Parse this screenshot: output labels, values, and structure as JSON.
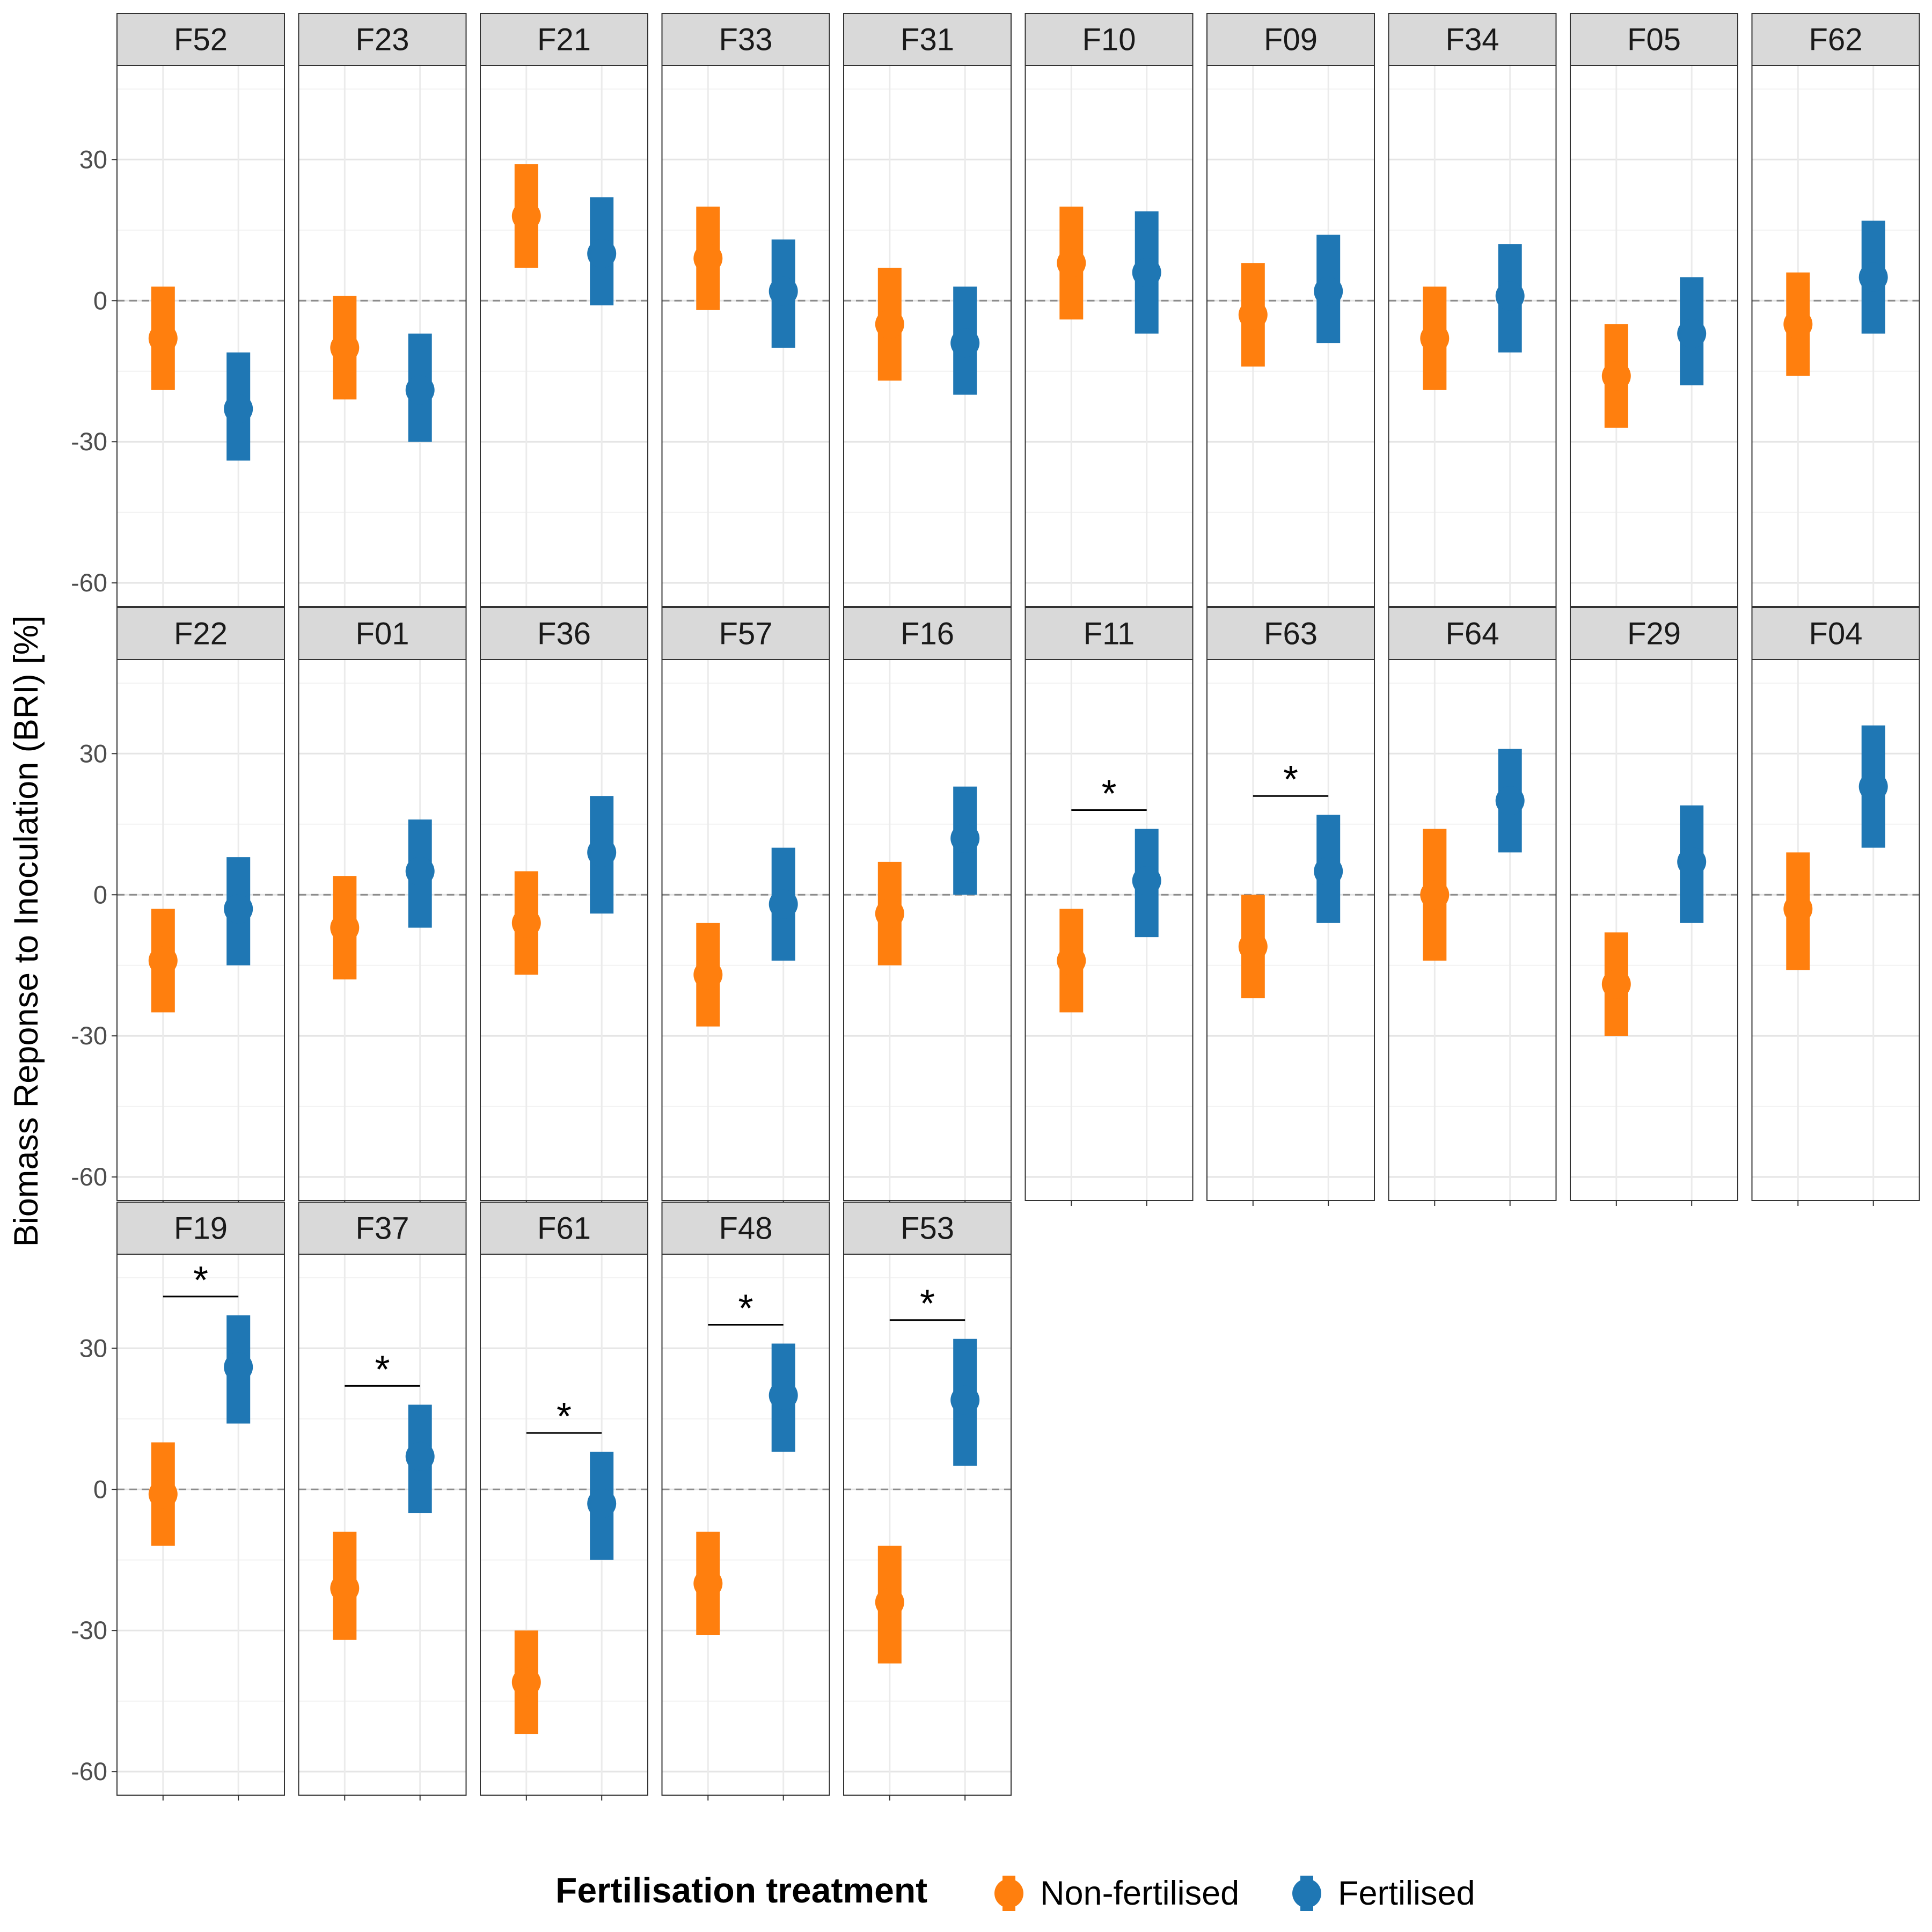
{
  "chart_data": {
    "type": "faceted-pointrange",
    "ylabel": "Biomass Reponse to Inoculation (BRI) [%]",
    "ylim": [
      -65,
      50
    ],
    "yticks": [
      -60,
      -30,
      0,
      30
    ],
    "ytick_labels": [
      "-60",
      "-30",
      "0",
      "30"
    ],
    "minor_gridlines": [
      -45,
      -15,
      15,
      45
    ],
    "reference_line": 0,
    "grid": true,
    "legend": {
      "title": "Fertilisation treatment",
      "position": "bottom",
      "items": [
        {
          "label": "Non-fertilised",
          "color": "#FF7F0E"
        },
        {
          "label": "Fertilised",
          "color": "#1F77B4"
        }
      ]
    },
    "series_colors": {
      "nonfert": "#FF7F0E",
      "fert": "#1F77B4"
    },
    "facets": [
      {
        "label": "F52",
        "nonfert": {
          "mean": -8,
          "low": -19,
          "high": 3
        },
        "fert": {
          "mean": -23,
          "low": -34,
          "high": -11
        },
        "signif": false
      },
      {
        "label": "F23",
        "nonfert": {
          "mean": -10,
          "low": -21,
          "high": 1
        },
        "fert": {
          "mean": -19,
          "low": -30,
          "high": -7
        },
        "signif": false
      },
      {
        "label": "F21",
        "nonfert": {
          "mean": 18,
          "low": 7,
          "high": 29
        },
        "fert": {
          "mean": 10,
          "low": -1,
          "high": 22
        },
        "signif": false
      },
      {
        "label": "F33",
        "nonfert": {
          "mean": 9,
          "low": -2,
          "high": 20
        },
        "fert": {
          "mean": 2,
          "low": -10,
          "high": 13
        },
        "signif": false
      },
      {
        "label": "F31",
        "nonfert": {
          "mean": -5,
          "low": -17,
          "high": 7
        },
        "fert": {
          "mean": -9,
          "low": -20,
          "high": 3
        },
        "signif": false
      },
      {
        "label": "F10",
        "nonfert": {
          "mean": 8,
          "low": -4,
          "high": 20
        },
        "fert": {
          "mean": 6,
          "low": -7,
          "high": 19
        },
        "signif": false
      },
      {
        "label": "F09",
        "nonfert": {
          "mean": -3,
          "low": -14,
          "high": 8
        },
        "fert": {
          "mean": 2,
          "low": -9,
          "high": 14
        },
        "signif": false
      },
      {
        "label": "F34",
        "nonfert": {
          "mean": -8,
          "low": -19,
          "high": 3
        },
        "fert": {
          "mean": 1,
          "low": -11,
          "high": 12
        },
        "signif": false
      },
      {
        "label": "F05",
        "nonfert": {
          "mean": -16,
          "low": -27,
          "high": -5
        },
        "fert": {
          "mean": -7,
          "low": -18,
          "high": 5
        },
        "signif": false
      },
      {
        "label": "F62",
        "nonfert": {
          "mean": -5,
          "low": -16,
          "high": 6
        },
        "fert": {
          "mean": 5,
          "low": -7,
          "high": 17
        },
        "signif": false
      },
      {
        "label": "F22",
        "nonfert": {
          "mean": -14,
          "low": -25,
          "high": -3
        },
        "fert": {
          "mean": -3,
          "low": -15,
          "high": 8
        },
        "signif": false
      },
      {
        "label": "F01",
        "nonfert": {
          "mean": -7,
          "low": -18,
          "high": 4
        },
        "fert": {
          "mean": 5,
          "low": -7,
          "high": 16
        },
        "signif": false
      },
      {
        "label": "F36",
        "nonfert": {
          "mean": -6,
          "low": -17,
          "high": 5
        },
        "fert": {
          "mean": 9,
          "low": -4,
          "high": 21
        },
        "signif": false
      },
      {
        "label": "F57",
        "nonfert": {
          "mean": -17,
          "low": -28,
          "high": -6
        },
        "fert": {
          "mean": -2,
          "low": -14,
          "high": 10
        },
        "signif": false
      },
      {
        "label": "F16",
        "nonfert": {
          "mean": -4,
          "low": -15,
          "high": 7
        },
        "fert": {
          "mean": 12,
          "low": 0,
          "high": 23
        },
        "signif": false
      },
      {
        "label": "F11",
        "nonfert": {
          "mean": -14,
          "low": -25,
          "high": -3
        },
        "fert": {
          "mean": 3,
          "low": -9,
          "high": 14
        },
        "signif": true,
        "star_y": 18
      },
      {
        "label": "F63",
        "nonfert": {
          "mean": -11,
          "low": -22,
          "high": 0
        },
        "fert": {
          "mean": 5,
          "low": -6,
          "high": 17
        },
        "signif": true,
        "star_y": 21
      },
      {
        "label": "F64",
        "nonfert": {
          "mean": 0,
          "low": -14,
          "high": 14
        },
        "fert": {
          "mean": 20,
          "low": 9,
          "high": 31
        },
        "signif": false
      },
      {
        "label": "F29",
        "nonfert": {
          "mean": -19,
          "low": -30,
          "high": -8
        },
        "fert": {
          "mean": 7,
          "low": -6,
          "high": 19
        },
        "signif": false
      },
      {
        "label": "F04",
        "nonfert": {
          "mean": -3,
          "low": -16,
          "high": 9
        },
        "fert": {
          "mean": 23,
          "low": 10,
          "high": 36
        },
        "signif": false
      },
      {
        "label": "F19",
        "nonfert": {
          "mean": -1,
          "low": -12,
          "high": 10
        },
        "fert": {
          "mean": 26,
          "low": 14,
          "high": 37
        },
        "signif": true,
        "star_y": 41
      },
      {
        "label": "F37",
        "nonfert": {
          "mean": -21,
          "low": -32,
          "high": -9
        },
        "fert": {
          "mean": 7,
          "low": -5,
          "high": 18
        },
        "signif": true,
        "star_y": 22
      },
      {
        "label": "F61",
        "nonfert": {
          "mean": -41,
          "low": -52,
          "high": -30
        },
        "fert": {
          "mean": -3,
          "low": -15,
          "high": 8
        },
        "signif": true,
        "star_y": 12
      },
      {
        "label": "F48",
        "nonfert": {
          "mean": -20,
          "low": -31,
          "high": -9
        },
        "fert": {
          "mean": 20,
          "low": 8,
          "high": 31
        },
        "signif": true,
        "star_y": 35
      },
      {
        "label": "F53",
        "nonfert": {
          "mean": -24,
          "low": -37,
          "high": -12
        },
        "fert": {
          "mean": 19,
          "low": 5,
          "high": 32
        },
        "signif": true,
        "star_y": 36
      }
    ],
    "significance_marker": "*"
  }
}
